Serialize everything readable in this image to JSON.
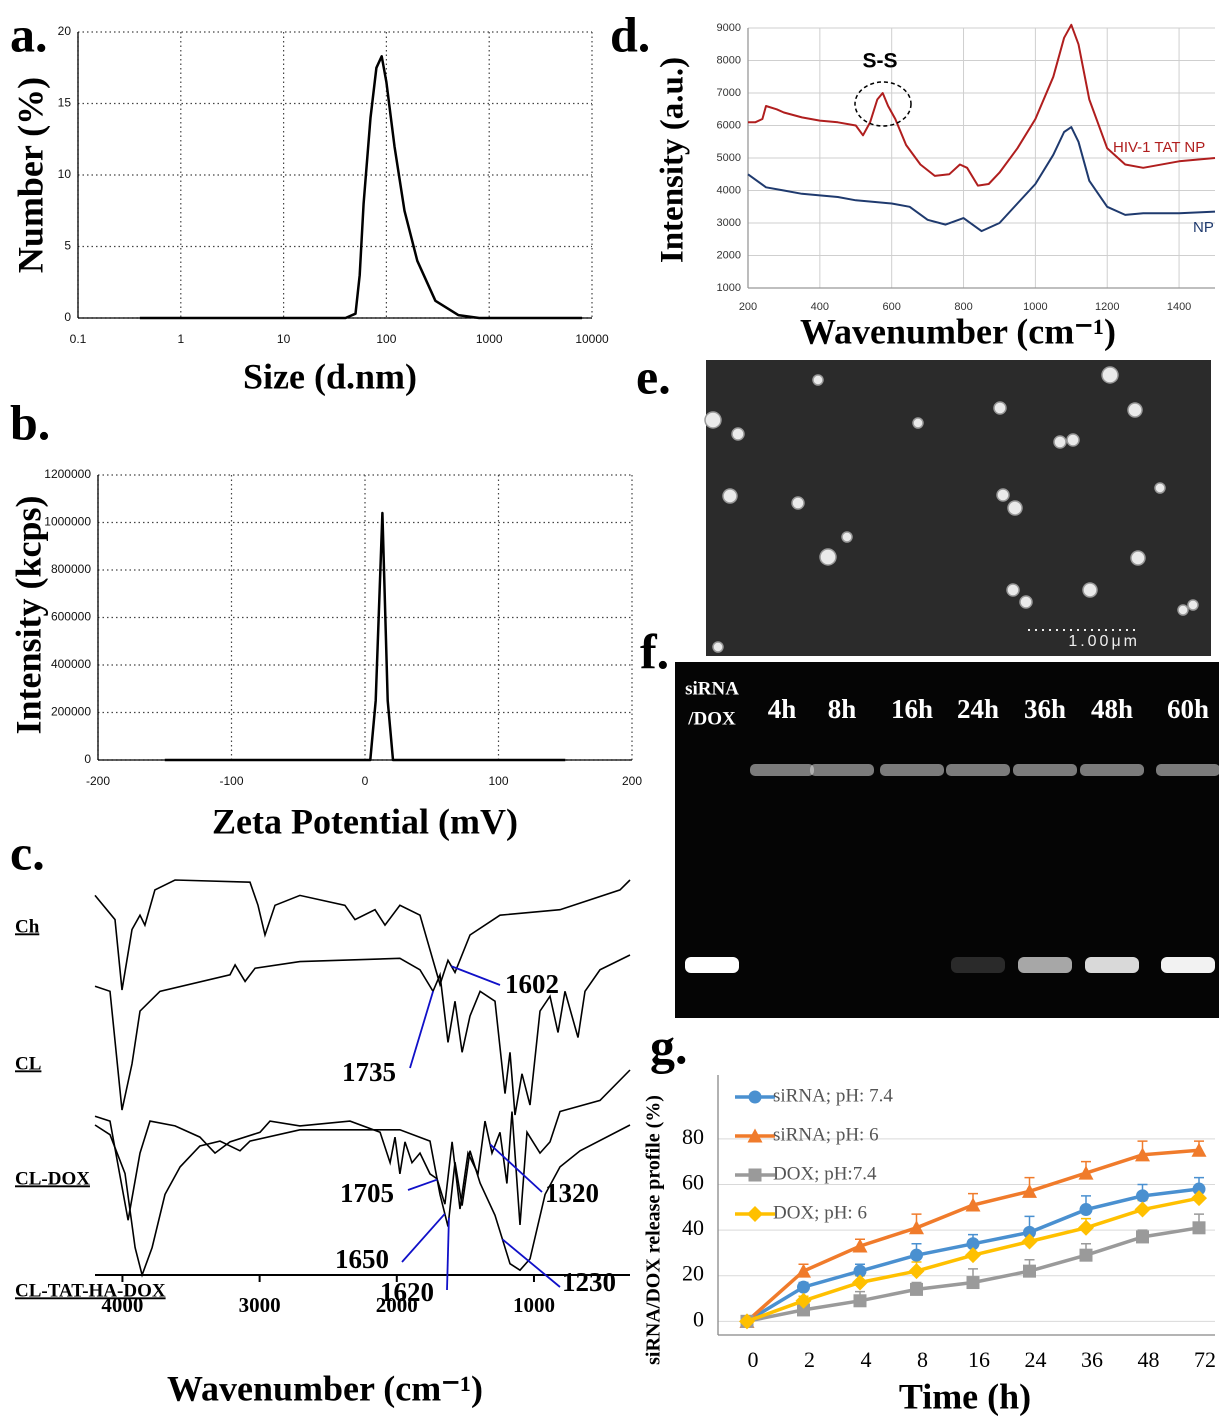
{
  "chart_data": [
    {
      "panel_label": "a.",
      "type": "line",
      "xlabel": "Size (d.nm)",
      "ylabel": "Number (%)",
      "log_x": true,
      "grid": true,
      "color": "#000000",
      "x": [
        0.4,
        40,
        50,
        55,
        60,
        70,
        80,
        90,
        100,
        120,
        150,
        200,
        300,
        500,
        800,
        8000
      ],
      "values": [
        0,
        0,
        0.3,
        3,
        8,
        14,
        17.5,
        18.3,
        16.5,
        12,
        7.5,
        4,
        1.2,
        0.2,
        0,
        0
      ],
      "xlim": [
        0.1,
        10000
      ],
      "xticks": [
        0.1,
        1,
        10,
        100,
        1000,
        10000
      ],
      "ylim": [
        0,
        20
      ],
      "yticks": [
        0,
        5,
        10,
        15,
        20
      ]
    },
    {
      "panel_label": "b.",
      "type": "line",
      "xlabel": "Zeta Potential (mV)",
      "ylabel": "Intensity (kcps)",
      "grid": true,
      "color": "#000000",
      "x": [
        -150,
        4,
        8,
        13,
        17,
        21,
        150
      ],
      "values": [
        0,
        0,
        250000,
        1040000,
        250000,
        0,
        0
      ],
      "xlim": [
        -200,
        200
      ],
      "xticks": [
        -200,
        -100,
        0,
        100,
        200
      ],
      "ylim": [
        0,
        1200000
      ],
      "yticks": [
        0,
        200000,
        400000,
        600000,
        800000,
        1000000,
        1200000
      ]
    },
    {
      "panel_label": "c.",
      "type": "spectrum",
      "xlabel": "Wavenumber (cm⁻¹)",
      "xlim": [
        4200,
        300
      ],
      "xticks": [
        4000,
        3000,
        2000,
        1000
      ],
      "series": [
        {
          "name": "Ch",
          "color": "#000000",
          "x": [
            4200,
            4054,
            4003,
            3930,
            3872,
            3836,
            3763,
            3617,
            3070,
            3012,
            2961,
            2888,
            2706,
            2378,
            2305,
            2159,
            2086,
            1977,
            1831,
            1685,
            1627,
            1576,
            1466,
            1248,
            810,
            373,
            300
          ],
          "values": [
            86,
            64,
            0,
            55,
            68,
            59,
            91,
            100,
            98,
            77,
            50,
            77,
            86,
            77,
            64,
            73,
            59,
            77,
            68,
            5,
            27,
            16,
            50,
            68,
            73,
            91,
            100
          ]
        },
        {
          "name": "CL",
          "color": "#000000",
          "x": [
            4200,
            4091,
            4003,
            3930,
            3872,
            3726,
            3216,
            3179,
            3106,
            3033,
            2706,
            1977,
            1831,
            1736,
            1685,
            1627,
            1576,
            1524,
            1466,
            1393,
            1284,
            1211,
            1175,
            1138,
            1087,
            1029,
            956,
            883,
            825,
            774,
            679,
            628,
            519,
            300
          ],
          "values": [
            81,
            78,
            6,
            34,
            66,
            78,
            88,
            94,
            84,
            92,
            96,
            98,
            91,
            78,
            88,
            47,
            72,
            41,
            63,
            78,
            72,
            16,
            41,
            3,
            28,
            9,
            66,
            75,
            53,
            78,
            50,
            78,
            91,
            100
          ]
        },
        {
          "name": "CL-DOX",
          "color": "#000000",
          "x": [
            4200,
            4091,
            3959,
            3872,
            3799,
            3617,
            3435,
            3325,
            3216,
            2997,
            2924,
            2706,
            2341,
            2122,
            2049,
            2013,
            1977,
            1940,
            1889,
            1831,
            1758,
            1707,
            1649,
            1597,
            1539,
            1481,
            1408,
            1357,
            1306,
            1248,
            1197,
            1160,
            1102,
            1051,
            956,
            883,
            810,
            519,
            300
          ],
          "values": [
            71,
            68,
            6,
            48,
            68,
            65,
            58,
            48,
            55,
            61,
            68,
            65,
            68,
            61,
            42,
            58,
            35,
            55,
            42,
            48,
            35,
            32,
            16,
            55,
            13,
            48,
            35,
            68,
            48,
            61,
            29,
            74,
            3,
            61,
            48,
            55,
            74,
            81,
            100
          ]
        },
        {
          "name": "CL-TAT-HA-DOX",
          "color": "#000000",
          "x": [
            4200,
            4091,
            3981,
            3908,
            3857,
            3784,
            3690,
            3580,
            3435,
            3289,
            3143,
            3070,
            2706,
            1977,
            1758,
            1685,
            1627,
            1576,
            1524,
            1466,
            1393,
            1284,
            1175,
            1102,
            1029,
            919,
            810,
            664,
            300
          ],
          "values": [
            93,
            87,
            63,
            17,
            0,
            17,
            50,
            67,
            80,
            83,
            77,
            83,
            90,
            90,
            83,
            50,
            30,
            70,
            43,
            77,
            57,
            37,
            7,
            3,
            10,
            50,
            67,
            77,
            93
          ]
        }
      ],
      "annotations": [
        {
          "series": 0,
          "x": 1602
        },
        {
          "series": 1,
          "x": 1735
        },
        {
          "series": 2,
          "x": 1705
        },
        {
          "series": 2,
          "x": 1320
        },
        {
          "series": 3,
          "x": 1650
        },
        {
          "series": 3,
          "x": 1620
        },
        {
          "series": 3,
          "x": 1230
        }
      ]
    },
    {
      "panel_label": "d.",
      "type": "line",
      "xlabel": "Wavenumber (cm⁻¹)",
      "ylabel": "Intensity (a.u.)",
      "grid": true,
      "annotation": "S-S",
      "xlim": [
        200,
        1500
      ],
      "xticks": [
        200,
        400,
        600,
        800,
        1000,
        1200,
        1400
      ],
      "ylim": [
        1000,
        9000
      ],
      "yticks": [
        1000,
        2000,
        3000,
        4000,
        5000,
        6000,
        7000,
        8000,
        9000
      ],
      "series": [
        {
          "name": "HIV-1 TAT NP",
          "color": "#b01e1e",
          "x": [
            200,
            220,
            240,
            250,
            280,
            300,
            350,
            400,
            450,
            500,
            520,
            540,
            560,
            575,
            590,
            610,
            640,
            680,
            720,
            760,
            790,
            810,
            840,
            870,
            900,
            950,
            1000,
            1050,
            1080,
            1100,
            1120,
            1150,
            1200,
            1250,
            1300,
            1400,
            1500
          ],
          "values": [
            6100,
            6100,
            6200,
            6600,
            6500,
            6400,
            6250,
            6150,
            6100,
            6000,
            5700,
            6100,
            6800,
            7000,
            6600,
            6200,
            5400,
            4800,
            4450,
            4500,
            4800,
            4700,
            4150,
            4200,
            4550,
            5300,
            6200,
            7500,
            8700,
            9100,
            8500,
            6800,
            5300,
            4800,
            4700,
            4900,
            5000
          ]
        },
        {
          "name": "NP",
          "color": "#1f3a6e",
          "x": [
            200,
            250,
            300,
            350,
            400,
            450,
            500,
            550,
            600,
            650,
            700,
            750,
            800,
            850,
            900,
            950,
            1000,
            1050,
            1080,
            1100,
            1120,
            1150,
            1200,
            1250,
            1300,
            1400,
            1500
          ],
          "values": [
            4500,
            4100,
            4000,
            3900,
            3850,
            3800,
            3700,
            3650,
            3600,
            3500,
            3100,
            2950,
            3150,
            2750,
            3000,
            3600,
            4200,
            5100,
            5800,
            5950,
            5500,
            4300,
            3500,
            3250,
            3300,
            3300,
            3350
          ]
        }
      ]
    },
    {
      "panel_label": "g.",
      "type": "line",
      "xlabel": "Time (h)",
      "ylabel": "siRNA/DOX release profile (%)",
      "grid": true,
      "legend": "upper left",
      "categories": [
        "0",
        "2",
        "4",
        "8",
        "16",
        "24",
        "36",
        "48",
        "72"
      ],
      "ylim": [
        -6,
        108
      ],
      "yticks": [
        0,
        20,
        40,
        60,
        80
      ],
      "series": [
        {
          "name": "siRNA; pH: 7.4",
          "color": "#4a90d0",
          "marker": "circle",
          "values": [
            0,
            15,
            22,
            29,
            34,
            39,
            49,
            55,
            58
          ],
          "errors": [
            0,
            2,
            3,
            5,
            4,
            7,
            6,
            5,
            5
          ]
        },
        {
          "name": "siRNA; pH: 6",
          "color": "#f07b2b",
          "marker": "triangle",
          "values": [
            0,
            22,
            33,
            41,
            51,
            57,
            65,
            73,
            75
          ],
          "errors": [
            0,
            3,
            3,
            6,
            5,
            6,
            5,
            6,
            4
          ]
        },
        {
          "name": "DOX; pH:7.4",
          "color": "#9a9a9a",
          "marker": "square",
          "values": [
            0,
            5,
            9,
            14,
            17,
            22,
            29,
            37,
            41
          ],
          "errors": [
            0,
            2,
            4,
            3,
            6,
            5,
            5,
            3,
            6
          ]
        },
        {
          "name": "DOX; pH: 6",
          "color": "#ffc000",
          "marker": "diamond",
          "values": [
            0,
            9,
            17,
            22,
            29,
            35,
            41,
            49,
            54
          ],
          "errors": [
            0,
            2,
            3,
            4,
            5,
            5,
            4,
            4,
            4
          ]
        }
      ]
    }
  ],
  "sem": {
    "panel_label": "e.",
    "scale_bar": "1.00μm"
  },
  "gel": {
    "panel_label": "f.",
    "lanes": [
      [
        "siRNA",
        "/DOX"
      ],
      [
        "4h"
      ],
      [
        "8h"
      ],
      [
        "16h"
      ],
      [
        "24h"
      ],
      [
        "36h"
      ],
      [
        "48h"
      ],
      [
        "60h"
      ]
    ]
  }
}
